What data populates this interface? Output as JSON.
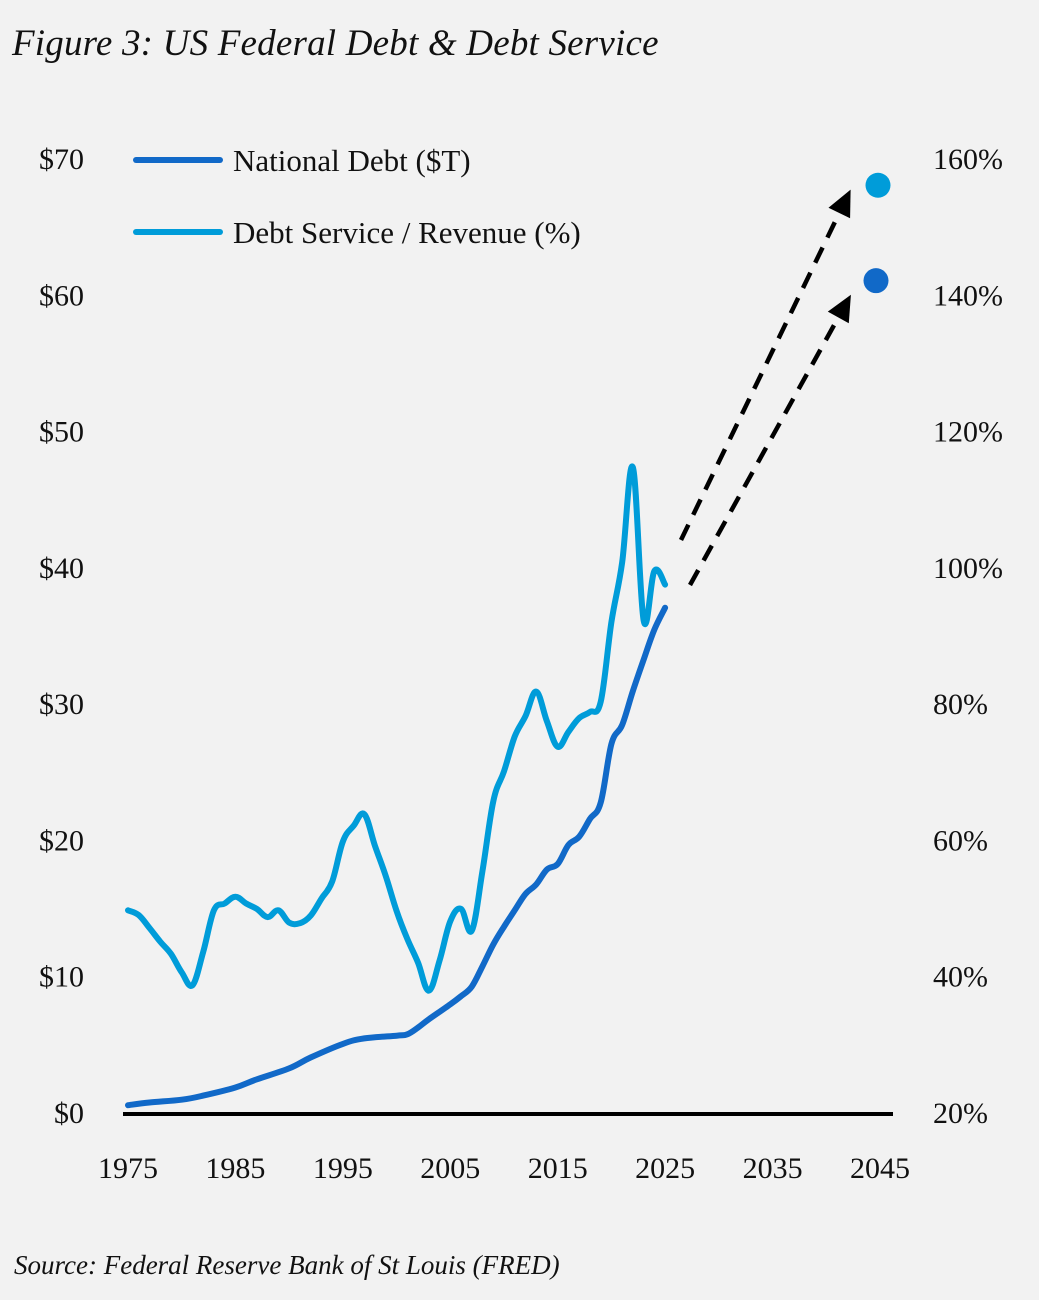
{
  "title": "Figure 3: US Federal Debt & Debt Service",
  "source": "Source: Federal Reserve Bank of St Louis (FRED)",
  "colors": {
    "national_debt": "#1169c8",
    "debt_service": "#009cd9",
    "arrow": "#000000",
    "axis": "#000000",
    "background": "#f2f2f2"
  },
  "chart_data": {
    "type": "line",
    "title": "Figure 3: US Federal Debt & Debt Service",
    "xlabel": "",
    "ylabel": "National Debt ($T)",
    "y2label": "Debt Service / Revenue (%)",
    "x_ticks": [
      "1975",
      "1985",
      "1995",
      "2005",
      "2015",
      "2025",
      "2035",
      "2045"
    ],
    "xlim": [
      1975,
      2045
    ],
    "ylim": [
      0,
      70
    ],
    "y2lim": [
      20,
      160
    ],
    "y_ticks": [
      "$0",
      "$10",
      "$20",
      "$30",
      "$40",
      "$50",
      "$60",
      "$70"
    ],
    "y2_ticks": [
      "20%",
      "40%",
      "60%",
      "80%",
      "100%",
      "120%",
      "140%",
      "160%"
    ],
    "legend": {
      "placement": "top-left",
      "entries": [
        "National Debt ($T)",
        "Debt Service / Revenue (%)"
      ]
    },
    "grid": false,
    "series": [
      {
        "name": "National Debt ($T)",
        "axis": "left",
        "x": [
          1975,
          1977,
          1980,
          1982,
          1985,
          1987,
          1990,
          1992,
          1995,
          1997,
          2000,
          2001,
          2002,
          2003,
          2005,
          2006,
          2007,
          2008,
          2009,
          2010,
          2011,
          2012,
          2013,
          2014,
          2015,
          2016,
          2017,
          2018,
          2019,
          2020,
          2021,
          2022,
          2023,
          2024,
          2025
        ],
        "values": [
          0.5,
          0.7,
          0.9,
          1.2,
          1.8,
          2.4,
          3.2,
          4.0,
          5.0,
          5.4,
          5.6,
          5.7,
          6.2,
          6.8,
          7.9,
          8.5,
          9.2,
          10.7,
          12.3,
          13.6,
          14.8,
          16.0,
          16.7,
          17.8,
          18.2,
          19.6,
          20.2,
          21.5,
          22.7,
          27.0,
          28.4,
          30.9,
          33.2,
          35.4,
          37.0
        ]
      },
      {
        "name": "Debt Service / Revenue (%)",
        "axis": "right",
        "x": [
          1975,
          1976,
          1977,
          1978,
          1979,
          1980,
          1981,
          1982,
          1983,
          1984,
          1985,
          1986,
          1987,
          1988,
          1989,
          1990,
          1991,
          1992,
          1993,
          1994,
          1995,
          1996,
          1997,
          1998,
          1999,
          2000,
          2001,
          2002,
          2003,
          2004,
          2005,
          2006,
          2007,
          2008,
          2009,
          2010,
          2011,
          2012,
          2013,
          2014,
          2015,
          2016,
          2017,
          2018,
          2019,
          2020,
          2021,
          2022,
          2023,
          2024,
          2025
        ],
        "values": [
          49.6,
          48.9,
          47.0,
          45.0,
          43.2,
          40.5,
          38.6,
          43.5,
          49.6,
          50.6,
          51.6,
          50.6,
          49.8,
          48.6,
          49.6,
          47.8,
          47.7,
          48.8,
          51.3,
          53.8,
          59.7,
          62.0,
          63.7,
          59.0,
          54.6,
          49.5,
          45.4,
          41.9,
          37.8,
          42.2,
          48.0,
          49.8,
          46.6,
          55.4,
          65.6,
          70.0,
          75.1,
          78.1,
          81.7,
          77.3,
          73.6,
          75.8,
          77.8,
          78.7,
          80.2,
          91.9,
          100.7,
          114.6,
          92.1,
          99.4,
          97.4
        ]
      }
    ],
    "projections": [
      {
        "name": "National Debt projection",
        "axis": "left",
        "x": 2045,
        "value": 61,
        "from_x": 2025,
        "from_value": 37.0
      },
      {
        "name": "Debt Service / Revenue projection",
        "axis": "right",
        "x": 2045,
        "value": 156,
        "from_x": 2025,
        "from_value": 97.4
      }
    ]
  }
}
